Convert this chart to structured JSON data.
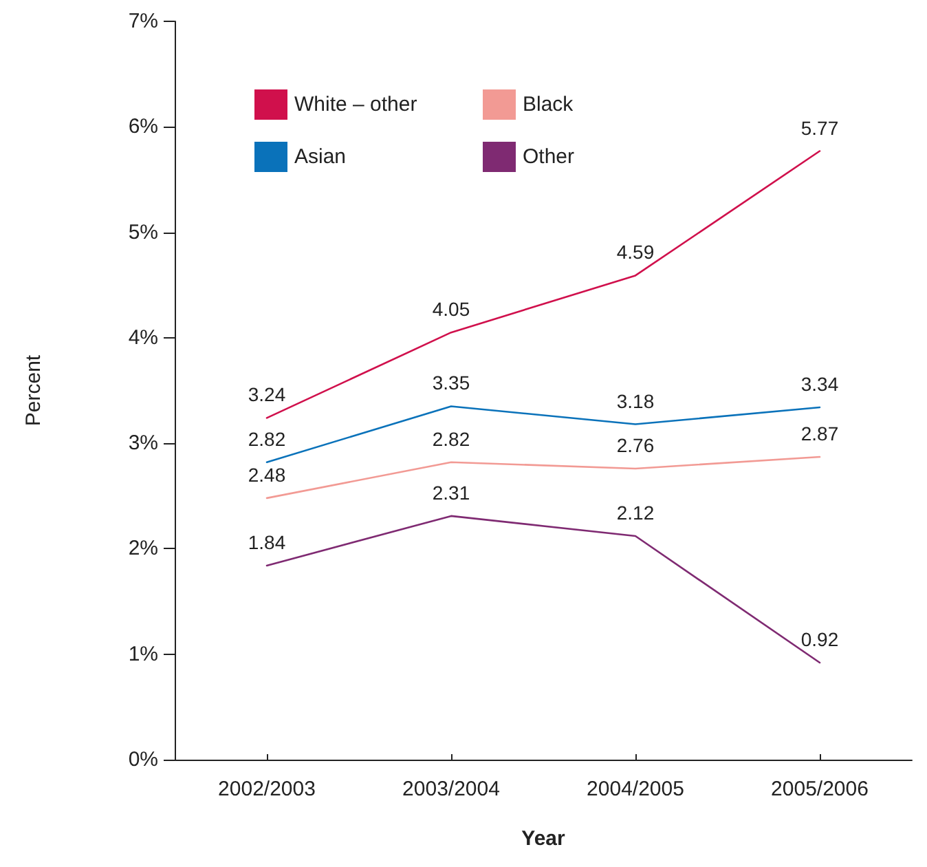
{
  "chart_data": {
    "type": "line",
    "xlabel": "Year",
    "ylabel": "Percent",
    "categories": [
      "2002/2003",
      "2003/2004",
      "2004/2005",
      "2005/2006"
    ],
    "series": [
      {
        "name": "White – other",
        "color": "#d0104c",
        "values": [
          3.24,
          4.05,
          4.59,
          5.77
        ]
      },
      {
        "name": "Asian",
        "color": "#0a72ba",
        "values": [
          2.82,
          3.35,
          3.18,
          3.34
        ]
      },
      {
        "name": "Black",
        "color": "#f29a94",
        "values": [
          2.48,
          2.82,
          2.76,
          2.87
        ]
      },
      {
        "name": "Other",
        "color": "#7f2a72",
        "values": [
          1.84,
          2.31,
          2.12,
          0.92
        ]
      }
    ],
    "ylim": [
      0,
      7
    ],
    "yticks": [
      {
        "value": 0,
        "label": "0%"
      },
      {
        "value": 1,
        "label": "1%"
      },
      {
        "value": 2,
        "label": "2%"
      },
      {
        "value": 3,
        "label": "3%"
      },
      {
        "value": 4,
        "label": "4%"
      },
      {
        "value": 5,
        "label": "5%"
      },
      {
        "value": 6,
        "label": "6%"
      },
      {
        "value": 7,
        "label": "7%"
      }
    ],
    "grid": false,
    "legend": "top left",
    "marker": "none",
    "line_style": "solid",
    "data_labels": true
  }
}
